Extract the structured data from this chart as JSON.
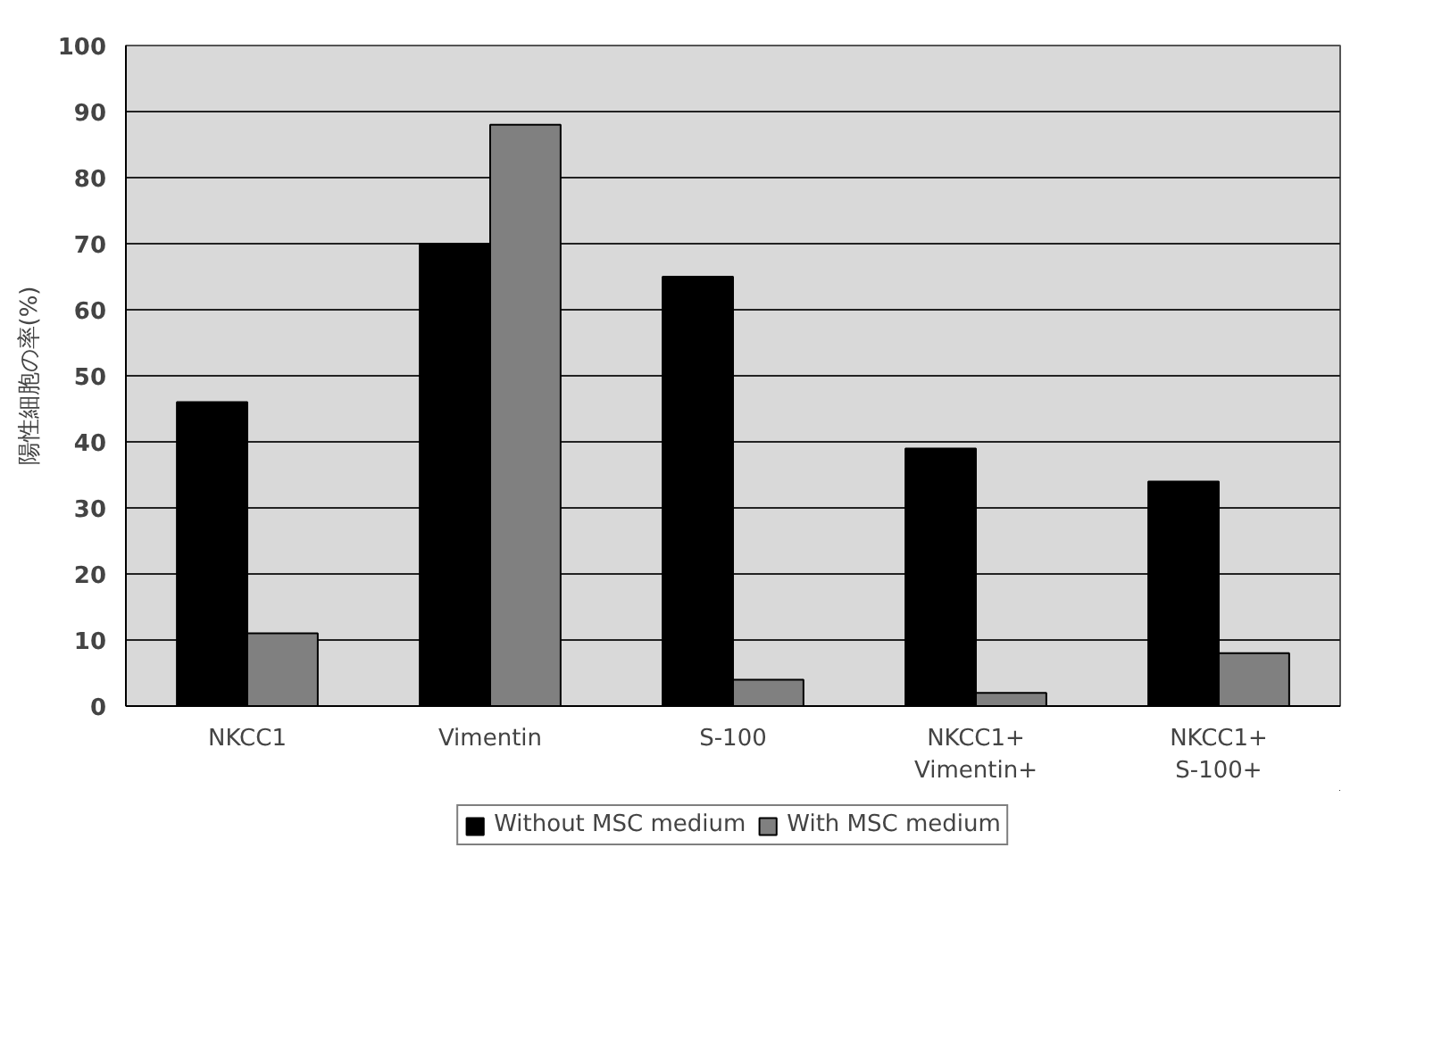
{
  "chart_data": {
    "type": "bar",
    "ylabel": "陽性細胞の率(%)",
    "categories": [
      "NKCC1",
      "Vimentin",
      "S-100",
      "NKCC1+ Vimentin+",
      "NKCC1+ S-100+"
    ],
    "series": [
      {
        "name": "Without MSC medium",
        "color": "#000000",
        "values": [
          46,
          70,
          65,
          39,
          34
        ]
      },
      {
        "name": "With MSC medium",
        "color": "#808080",
        "values": [
          11,
          88,
          4,
          2,
          8
        ]
      }
    ],
    "ylim": [
      0,
      100
    ],
    "yticks": [
      0,
      10,
      20,
      30,
      40,
      50,
      60,
      70,
      80,
      90,
      100
    ],
    "grid": "y",
    "legend": "bottom"
  }
}
